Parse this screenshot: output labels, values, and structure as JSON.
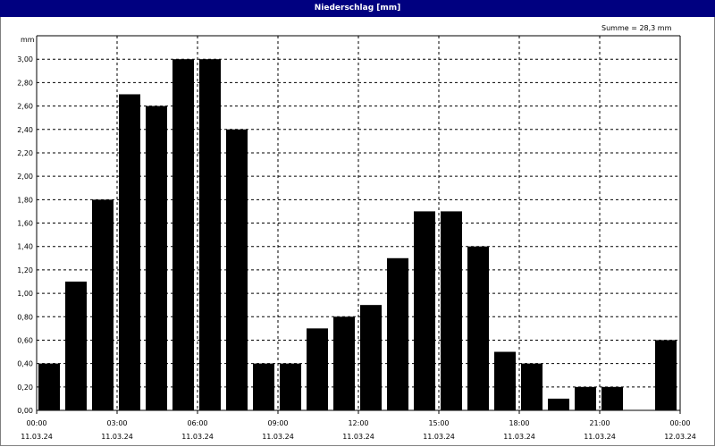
{
  "window": {
    "title": "Niederschlag [mm]"
  },
  "chart_data": {
    "type": "bar",
    "title": "Niederschlag [mm]",
    "ylabel": "mm",
    "annotation": "Summe = 28,3 mm",
    "ylim": [
      0,
      3.2
    ],
    "yticks": [
      "0,00",
      "0,20",
      "0,40",
      "0,60",
      "0,80",
      "1,00",
      "1,20",
      "1,40",
      "1,60",
      "1,80",
      "2,00",
      "2,20",
      "2,40",
      "2,60",
      "2,80",
      "3,00"
    ],
    "xticks": [
      {
        "time": "00:00",
        "date": "11.03.24"
      },
      {
        "time": "03:00",
        "date": "11.03.24"
      },
      {
        "time": "06:00",
        "date": "11.03.24"
      },
      {
        "time": "09:00",
        "date": "11.03.24"
      },
      {
        "time": "12:00",
        "date": "11.03.24"
      },
      {
        "time": "15:00",
        "date": "11.03.24"
      },
      {
        "time": "18:00",
        "date": "11.03.24"
      },
      {
        "time": "21:00",
        "date": "11.03.24"
      },
      {
        "time": "00:00",
        "date": "12.03.24"
      }
    ],
    "series": [
      {
        "values": [
          0.4,
          1.1,
          1.8,
          2.7,
          2.6,
          3.0,
          3.0,
          2.4,
          0.4,
          0.4,
          0.7,
          0.8,
          0.9,
          1.3,
          1.7,
          1.7,
          1.4,
          0.5,
          0.4,
          0.1,
          0.2,
          0.2,
          0.0,
          0.6
        ]
      }
    ],
    "bar_color": "#000000",
    "grid": true
  }
}
